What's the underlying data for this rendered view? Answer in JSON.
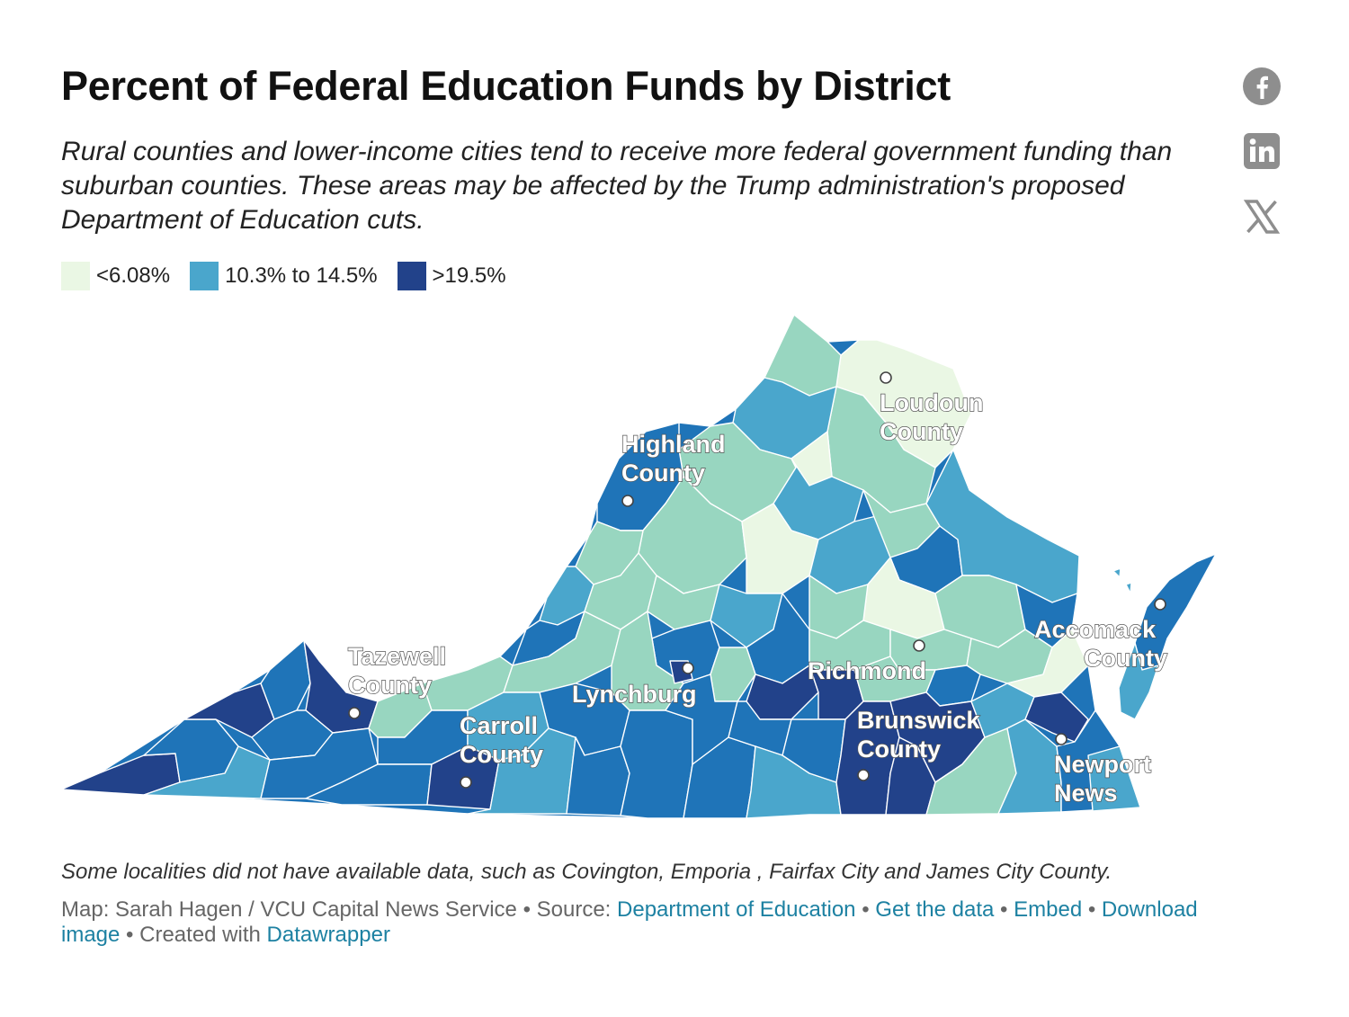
{
  "header": {
    "title": "Percent of Federal Education Funds by District",
    "subtitle": "Rural counties and lower-income cities tend to receive more federal government funding than suburban counties. These areas may be affected by the Trump administration's proposed Department of Education cuts."
  },
  "legend": [
    {
      "label": "<6.08%",
      "color": "#eaf7e4"
    },
    {
      "label": "10.3% to 14.5%",
      "color": "#4aa6cc"
    },
    {
      "label": ">19.5%",
      "color": "#22428a"
    }
  ],
  "palette": {
    "lightest": "#eaf7e4",
    "light_green": "#98d6c0",
    "mid_blue": "#4aa6cc",
    "blue": "#1f74b8",
    "dark_blue": "#22428a",
    "border": "#ffffff"
  },
  "share_icons": [
    "facebook-icon",
    "linkedin-icon",
    "x-icon"
  ],
  "map": {
    "region": "Virginia",
    "labels": [
      {
        "name": "Loudoun",
        "line2": "County",
        "color_class": "lightest"
      },
      {
        "name": "Highland",
        "line2": "County",
        "color_class": "blue"
      },
      {
        "name": "Tazewell",
        "line2": "County",
        "color_class": "dark_blue"
      },
      {
        "name": "Lynchburg",
        "line2": "",
        "color_class": "dark_blue"
      },
      {
        "name": "Richmond",
        "line2": "",
        "color_class": "blue"
      },
      {
        "name": "Carroll",
        "line2": "County",
        "color_class": "dark_blue"
      },
      {
        "name": "Brunswick",
        "line2": "County",
        "color_class": "dark_blue"
      },
      {
        "name": "Accomack",
        "line2": "County",
        "color_class": "blue"
      },
      {
        "name": "Newport",
        "line2": "News",
        "color_class": "blue"
      }
    ]
  },
  "footer": {
    "note": "Some localities did not have available data, such as Covington, Emporia , Fairfax City and James City County.",
    "map_credit": "Map: Sarah Hagen / VCU Capital News Service",
    "source_prefix": "Source:",
    "source_link": "Department of Education",
    "get_data": "Get the data",
    "embed": "Embed",
    "download": "Download image",
    "created_prefix": "Created with",
    "created_link": "Datawrapper"
  }
}
